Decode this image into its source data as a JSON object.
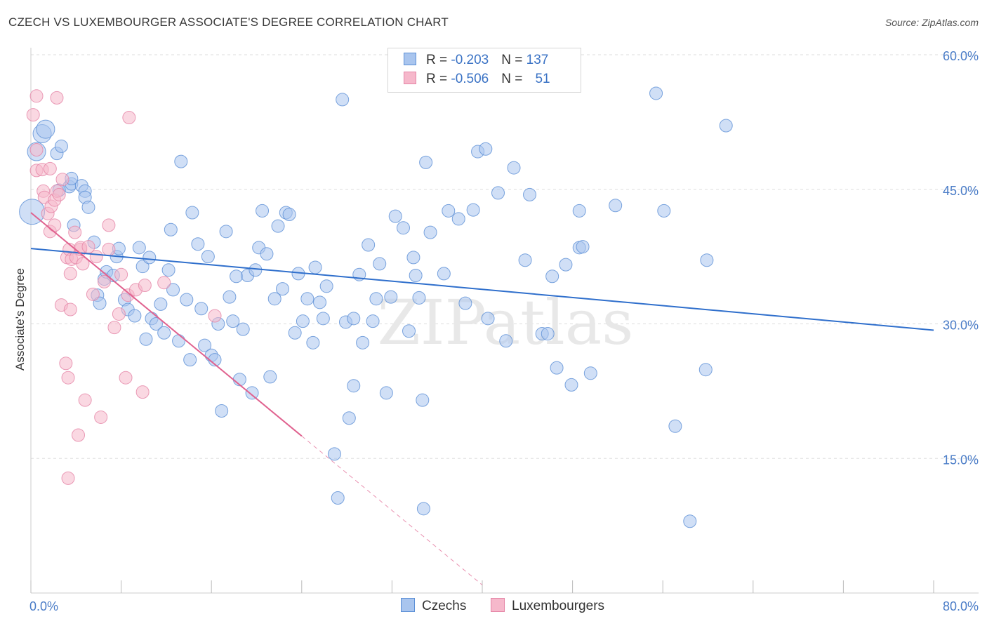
{
  "title": "CZECH VS LUXEMBOURGER ASSOCIATE'S DEGREE CORRELATION CHART",
  "source": "Source: ZipAtlas.com",
  "watermark": "ZIPatlas",
  "legend": {
    "czech": {
      "r_label": "R = ",
      "r_value": "-0.203",
      "n_label": "N = ",
      "n_value": "137"
    },
    "lux": {
      "r_label": "R = ",
      "r_value": "-0.506",
      "n_label": "N = ",
      "n_value": "51"
    }
  },
  "bottom_legend": {
    "czech": "Czechs",
    "lux": "Luxembourgers"
  },
  "colors": {
    "czech_fill": "#a9c5ee",
    "czech_stroke": "#5b8fd6",
    "czech_line": "#2f6fcc",
    "lux_fill": "#f6b8cb",
    "lux_stroke": "#e585a6",
    "lux_line": "#e0628f",
    "grid": "#dddddd",
    "tick_text": "#4a7cc7"
  },
  "chart_data": {
    "type": "scatter",
    "title": "CZECH VS LUXEMBOURGER ASSOCIATE'S DEGREE CORRELATION CHART",
    "xlabel": "",
    "ylabel": "Associate's Degree",
    "xlim": [
      0,
      80
    ],
    "ylim": [
      0,
      60
    ],
    "x_tick_labels": [
      "0.0%",
      "80.0%"
    ],
    "y_ticks": [
      15,
      30,
      45,
      60
    ],
    "y_tick_labels": [
      "15.0%",
      "30.0%",
      "45.0%",
      "60.0%"
    ],
    "grid": true,
    "series": [
      {
        "name": "Czechs",
        "R": -0.203,
        "N": 137,
        "trend": {
          "x": [
            0,
            80
          ],
          "y": [
            38.4,
            29.3
          ]
        },
        "points": [
          [
            0.1,
            42.5
          ],
          [
            0.5,
            49.2
          ],
          [
            1.0,
            51.2
          ],
          [
            1.3,
            51.7
          ],
          [
            2.3,
            49.0
          ],
          [
            2.7,
            49.8
          ],
          [
            3.4,
            45.3
          ],
          [
            3.6,
            45.6
          ],
          [
            3.6,
            46.2
          ],
          [
            2.5,
            44.9
          ],
          [
            4.5,
            45.4
          ],
          [
            4.8,
            44.8
          ],
          [
            4.8,
            44.1
          ],
          [
            5.1,
            43.0
          ],
          [
            3.8,
            41.0
          ],
          [
            5.6,
            39.1
          ],
          [
            5.9,
            33.2
          ],
          [
            6.1,
            32.3
          ],
          [
            6.5,
            35.0
          ],
          [
            6.7,
            35.8
          ],
          [
            7.3,
            35.4
          ],
          [
            7.6,
            37.5
          ],
          [
            7.8,
            38.4
          ],
          [
            8.3,
            32.7
          ],
          [
            8.6,
            31.6
          ],
          [
            9.2,
            30.9
          ],
          [
            9.6,
            38.5
          ],
          [
            9.9,
            36.4
          ],
          [
            10.2,
            28.3
          ],
          [
            10.5,
            37.4
          ],
          [
            10.7,
            30.6
          ],
          [
            11.1,
            30.0
          ],
          [
            11.5,
            32.2
          ],
          [
            11.8,
            29.0
          ],
          [
            12.2,
            36.0
          ],
          [
            12.4,
            40.5
          ],
          [
            12.6,
            33.8
          ],
          [
            13.1,
            28.1
          ],
          [
            13.3,
            48.1
          ],
          [
            13.8,
            32.7
          ],
          [
            14.1,
            26.0
          ],
          [
            14.3,
            42.4
          ],
          [
            14.8,
            38.9
          ],
          [
            15.1,
            31.7
          ],
          [
            15.4,
            27.6
          ],
          [
            15.7,
            37.5
          ],
          [
            16.0,
            26.5
          ],
          [
            16.3,
            26.0
          ],
          [
            16.6,
            30.0
          ],
          [
            16.9,
            20.3
          ],
          [
            17.3,
            40.3
          ],
          [
            17.6,
            33.0
          ],
          [
            17.9,
            30.3
          ],
          [
            18.2,
            35.3
          ],
          [
            18.5,
            23.8
          ],
          [
            18.8,
            29.4
          ],
          [
            19.2,
            35.4
          ],
          [
            19.6,
            22.3
          ],
          [
            19.9,
            36.0
          ],
          [
            20.2,
            38.5
          ],
          [
            20.5,
            42.6
          ],
          [
            20.9,
            37.8
          ],
          [
            21.2,
            24.1
          ],
          [
            21.6,
            32.8
          ],
          [
            21.9,
            40.9
          ],
          [
            22.3,
            33.9
          ],
          [
            22.6,
            42.4
          ],
          [
            22.9,
            42.2
          ],
          [
            23.4,
            29.0
          ],
          [
            23.7,
            35.6
          ],
          [
            24.1,
            30.3
          ],
          [
            24.5,
            32.8
          ],
          [
            25.0,
            27.9
          ],
          [
            25.2,
            36.3
          ],
          [
            25.6,
            32.4
          ],
          [
            25.9,
            30.6
          ],
          [
            26.2,
            34.2
          ],
          [
            26.9,
            15.5
          ],
          [
            27.2,
            10.6
          ],
          [
            27.6,
            55.0
          ],
          [
            27.9,
            30.2
          ],
          [
            28.2,
            19.5
          ],
          [
            28.6,
            30.6
          ],
          [
            28.6,
            23.1
          ],
          [
            29.1,
            35.5
          ],
          [
            29.4,
            27.9
          ],
          [
            29.9,
            38.8
          ],
          [
            30.3,
            30.3
          ],
          [
            30.6,
            32.8
          ],
          [
            30.9,
            36.7
          ],
          [
            31.5,
            22.3
          ],
          [
            31.9,
            33.0
          ],
          [
            32.3,
            42.0
          ],
          [
            33.0,
            40.7
          ],
          [
            33.5,
            29.2
          ],
          [
            33.9,
            37.4
          ],
          [
            34.1,
            35.4
          ],
          [
            34.4,
            32.9
          ],
          [
            34.7,
            21.5
          ],
          [
            34.8,
            9.4
          ],
          [
            35.0,
            48.0
          ],
          [
            35.4,
            40.2
          ],
          [
            36.6,
            35.6
          ],
          [
            37.0,
            42.6
          ],
          [
            37.9,
            41.7
          ],
          [
            38.5,
            32.3
          ],
          [
            39.2,
            42.7
          ],
          [
            39.6,
            49.2
          ],
          [
            40.3,
            49.5
          ],
          [
            40.5,
            30.6
          ],
          [
            41.4,
            44.6
          ],
          [
            42.1,
            28.1
          ],
          [
            42.8,
            47.4
          ],
          [
            43.8,
            37.1
          ],
          [
            44.2,
            44.4
          ],
          [
            45.3,
            28.9
          ],
          [
            45.8,
            28.9
          ],
          [
            46.2,
            35.3
          ],
          [
            46.6,
            25.1
          ],
          [
            47.4,
            36.6
          ],
          [
            47.9,
            23.2
          ],
          [
            48.6,
            42.6
          ],
          [
            48.6,
            38.5
          ],
          [
            48.9,
            38.6
          ],
          [
            49.6,
            24.5
          ],
          [
            51.8,
            43.2
          ],
          [
            55.4,
            55.7
          ],
          [
            56.1,
            42.6
          ],
          [
            57.1,
            18.6
          ],
          [
            58.4,
            8.0
          ],
          [
            59.8,
            24.9
          ],
          [
            59.9,
            37.1
          ],
          [
            61.6,
            52.1
          ]
        ]
      },
      {
        "name": "Luxembourgers",
        "R": -0.506,
        "N": 51,
        "trend": {
          "x": [
            0,
            24
          ],
          "y": [
            42.4,
            17.5
          ]
        },
        "trend_dashed": {
          "x": [
            24,
            40
          ],
          "y": [
            17.5,
            0.9
          ]
        },
        "points": [
          [
            0.2,
            53.3
          ],
          [
            0.5,
            49.4
          ],
          [
            0.5,
            47.1
          ],
          [
            0.5,
            55.4
          ],
          [
            1.0,
            47.2
          ],
          [
            1.1,
            44.8
          ],
          [
            1.2,
            44.1
          ],
          [
            1.5,
            42.3
          ],
          [
            1.7,
            40.3
          ],
          [
            1.7,
            47.3
          ],
          [
            1.8,
            43.1
          ],
          [
            2.1,
            43.8
          ],
          [
            2.1,
            41.0
          ],
          [
            2.3,
            55.2
          ],
          [
            2.3,
            44.8
          ],
          [
            2.5,
            44.4
          ],
          [
            2.7,
            32.1
          ],
          [
            2.8,
            46.1
          ],
          [
            3.1,
            25.6
          ],
          [
            3.2,
            37.4
          ],
          [
            3.3,
            12.8
          ],
          [
            3.3,
            24.0
          ],
          [
            3.4,
            38.3
          ],
          [
            3.5,
            35.6
          ],
          [
            3.5,
            31.6
          ],
          [
            3.6,
            37.2
          ],
          [
            3.9,
            40.2
          ],
          [
            4.0,
            37.4
          ],
          [
            4.2,
            17.6
          ],
          [
            4.4,
            38.3
          ],
          [
            4.4,
            38.5
          ],
          [
            4.6,
            36.7
          ],
          [
            4.8,
            21.5
          ],
          [
            5.1,
            38.6
          ],
          [
            5.5,
            33.3
          ],
          [
            5.8,
            37.5
          ],
          [
            6.2,
            19.6
          ],
          [
            6.5,
            34.7
          ],
          [
            6.9,
            41.0
          ],
          [
            6.9,
            38.3
          ],
          [
            7.4,
            29.6
          ],
          [
            7.8,
            31.1
          ],
          [
            8.0,
            35.5
          ],
          [
            8.4,
            24.0
          ],
          [
            8.6,
            33.2
          ],
          [
            8.7,
            53.0
          ],
          [
            9.3,
            33.8
          ],
          [
            9.9,
            22.4
          ],
          [
            10.1,
            34.3
          ],
          [
            11.8,
            34.6
          ],
          [
            16.3,
            30.9
          ]
        ]
      }
    ]
  }
}
